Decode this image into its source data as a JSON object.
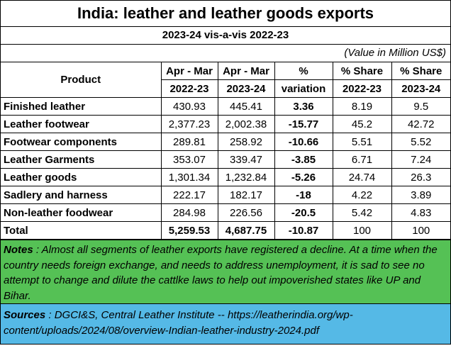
{
  "title": "India: leather and leather goods exports",
  "subtitle": "2023-24 vis-a-vis 2022-23",
  "unit_note": "(Value in Million US$)",
  "headers": {
    "product": "Product",
    "col1_top": "Apr - Mar",
    "col1_bottom": "2022-23",
    "col2_top": "Apr - Mar",
    "col2_bottom": "2023-24",
    "col3_top": "%",
    "col3_bottom": "variation",
    "col4_top": "% Share",
    "col4_bottom": "2022-23",
    "col5_top": "% Share",
    "col5_bottom": "2023-24"
  },
  "rows": [
    {
      "product": "Finished leather",
      "v2223": "430.93",
      "v2324": "445.41",
      "variation": "3.36",
      "share2223": "8.19",
      "share2324": "9.5"
    },
    {
      "product": "Leather footwear",
      "v2223": "2,377.23",
      "v2324": "2,002.38",
      "variation": "-15.77",
      "share2223": "45.2",
      "share2324": "42.72"
    },
    {
      "product": "Footwear components",
      "v2223": "289.81",
      "v2324": "258.92",
      "variation": "-10.66",
      "share2223": "5.51",
      "share2324": "5.52"
    },
    {
      "product": "Leather Garments",
      "v2223": "353.07",
      "v2324": "339.47",
      "variation": "-3.85",
      "share2223": "6.71",
      "share2324": "7.24"
    },
    {
      "product": "Leather goods",
      "v2223": "1,301.34",
      "v2324": "1,232.84",
      "variation": "-5.26",
      "share2223": "24.74",
      "share2324": "26.3"
    },
    {
      "product": "Sadlery and harness",
      "v2223": "222.17",
      "v2324": "182.17",
      "variation": "-18",
      "share2223": "4.22",
      "share2324": "3.89"
    },
    {
      "product": "Non-leather foodwear",
      "v2223": "284.98",
      "v2324": "226.56",
      "variation": "-20.5",
      "share2223": "5.42",
      "share2324": "4.83"
    }
  ],
  "total": {
    "product": "Total",
    "v2223": "5,259.53",
    "v2324": "4,687.75",
    "variation": "-10.87",
    "share2223": "100",
    "share2324": "100"
  },
  "notes": {
    "label": "Notes",
    "text": " :  Almost all segments of leather exports have registered a decline.  At a time when the country needs foreign exchange, and needs to address unemployment, it is sad to see no attempt to change and dilute the cattlke laws to help out impoverished states like UP and Bihar."
  },
  "sources": {
    "label": "Sources",
    "text": " : DGCI&S, Central Leather Institute -- https://leatherindia.org/wp-content/uploads/2024/08/overview-Indian-leather-industry-2024.pdf"
  }
}
